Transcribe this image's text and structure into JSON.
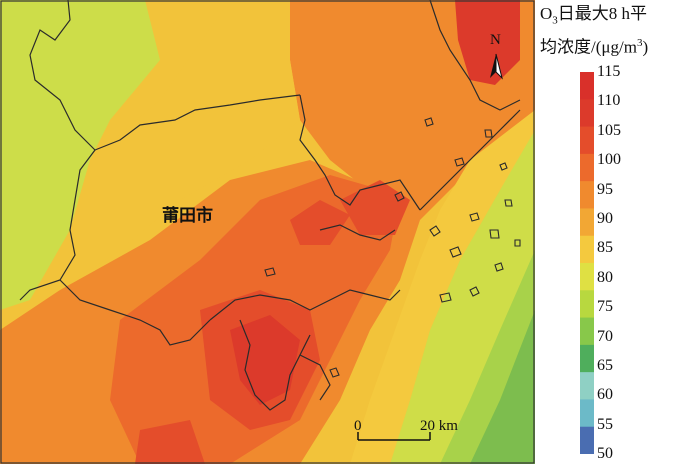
{
  "legend": {
    "title_line1_a": "O",
    "title_line1_sub": "3",
    "title_line1_b": "日最大8 h平",
    "title_line2_a": "均浓度/(μg/m",
    "title_line2_sup": "3",
    "title_line2_b": ")",
    "ticks": [
      "115",
      "110",
      "105",
      "100",
      "95",
      "90",
      "85",
      "80",
      "75",
      "70",
      "65",
      "60",
      "55",
      "50"
    ],
    "colors": [
      "#d9302a",
      "#dc3a2b",
      "#e44d2b",
      "#ec6a2c",
      "#f08a2e",
      "#f2a734",
      "#f4c93e",
      "#dfe043",
      "#b8d83f",
      "#88c84a",
      "#4fae5c",
      "#8fd0c4",
      "#6cbac8",
      "#4a6db1"
    ]
  },
  "map": {
    "city_label": "莆田市",
    "north_label": "N",
    "scale_zero": "0",
    "scale_end": "20 km"
  }
}
